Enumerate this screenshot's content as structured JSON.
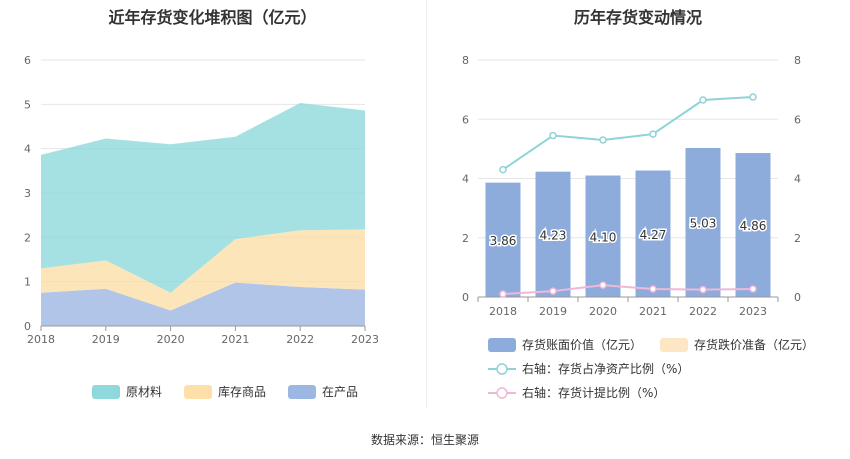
{
  "left": {
    "title": "近年存货变化堆积图（亿元）",
    "legend": [
      {
        "label": "原材料",
        "color": "#8fd9dc"
      },
      {
        "label": "库存商品",
        "color": "#fddfa9"
      },
      {
        "label": "在产品",
        "color": "#9db7e3"
      }
    ]
  },
  "right": {
    "title": "历年存货变动情况",
    "legend": [
      {
        "label": "存货账面价值（亿元）",
        "color": "#8dacdc"
      },
      {
        "label": "存货跌价准备（亿元）",
        "color": "#fde6c4"
      },
      {
        "label": "右轴：存货占净资产比例（%）",
        "color": "#8fd3d9"
      },
      {
        "label": "右轴：存货计提比例（%）",
        "color": "#efb7d8"
      }
    ]
  },
  "source": "数据来源：恒生聚源",
  "chart_data": [
    {
      "type": "area",
      "stacked": true,
      "title": "近年存货变化堆积图（亿元）",
      "x": [
        "2018",
        "2019",
        "2020",
        "2021",
        "2022",
        "2023"
      ],
      "ylim": [
        0,
        6
      ],
      "yticks": [
        0,
        1,
        2,
        3,
        4,
        5,
        6
      ],
      "grid": true,
      "legend_position": "bottom",
      "series": [
        {
          "name": "在产品",
          "values": [
            0.75,
            0.84,
            0.35,
            0.98,
            0.88,
            0.82
          ],
          "color": "#9db7e3"
        },
        {
          "name": "库存商品",
          "values": [
            0.55,
            0.64,
            0.4,
            0.98,
            1.28,
            1.36
          ],
          "color": "#fddfa9"
        },
        {
          "name": "原材料",
          "values": [
            2.56,
            2.75,
            3.35,
            2.31,
            2.87,
            2.68
          ],
          "color": "#8fd9dc"
        }
      ]
    },
    {
      "type": "bar",
      "title": "历年存货变动情况",
      "categories": [
        "2018",
        "2019",
        "2020",
        "2021",
        "2022",
        "2023"
      ],
      "ylim": [
        0,
        8
      ],
      "yticks": [
        0,
        2,
        4,
        6,
        8
      ],
      "y2lim": [
        0,
        8
      ],
      "y2ticks": [
        0,
        2,
        4,
        6,
        8
      ],
      "grid": true,
      "legend_position": "bottom",
      "series": [
        {
          "name": "存货账面价值（亿元）",
          "axis": "left",
          "kind": "bar",
          "values": [
            3.86,
            4.23,
            4.1,
            4.27,
            5.03,
            4.86
          ],
          "labels": [
            "3.86",
            "4.23",
            "4.10",
            "4.27",
            "5.03",
            "4.86"
          ],
          "color": "#8dacdc"
        },
        {
          "name": "存货跌价准备（亿元）",
          "axis": "left",
          "kind": "bar",
          "values": [
            0,
            0,
            0,
            0,
            0,
            0
          ],
          "color": "#fde6c4"
        },
        {
          "name": "右轴：存货占净资产比例（%）",
          "axis": "right",
          "kind": "line",
          "values": [
            4.3,
            5.45,
            5.3,
            5.5,
            6.65,
            6.75
          ],
          "color": "#8fd3d9"
        },
        {
          "name": "右轴：存货计提比例（%）",
          "axis": "right",
          "kind": "line",
          "values": [
            0.1,
            0.2,
            0.4,
            0.27,
            0.25,
            0.27
          ],
          "color": "#efb7d8"
        }
      ]
    }
  ]
}
